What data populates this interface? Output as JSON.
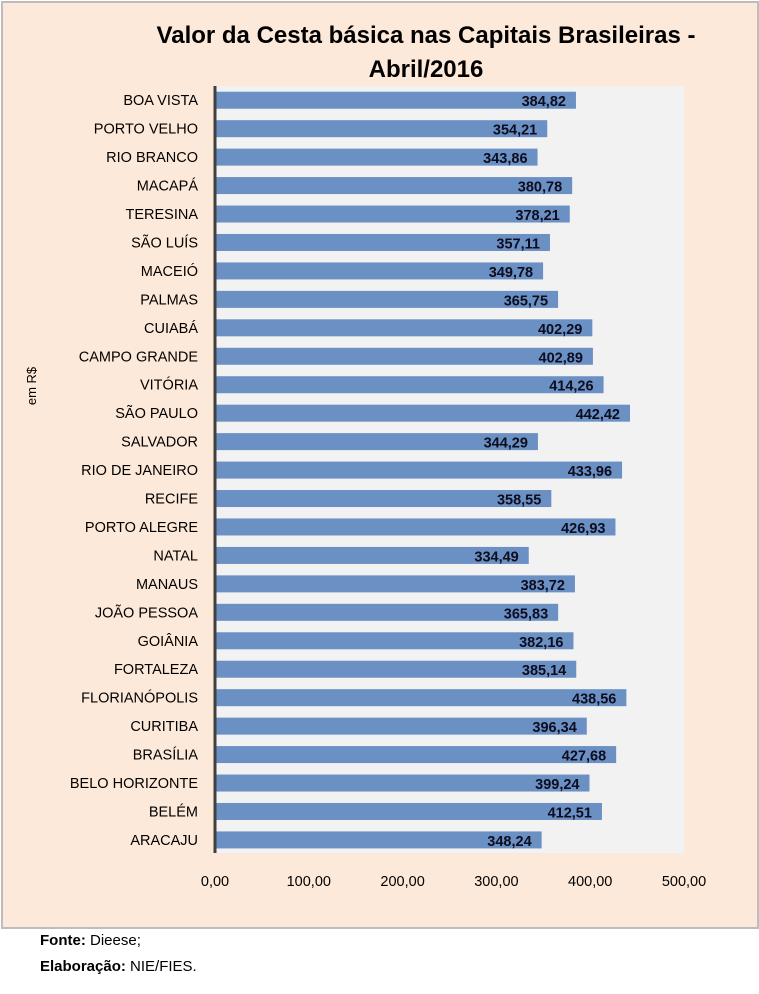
{
  "chart_data": {
    "type": "bar",
    "orientation": "horizontal",
    "title_lines": [
      "Valor da Cesta básica nas Capitais Brasileiras -",
      "Abril/2016"
    ],
    "ylabel": "em R$",
    "xlabel": "",
    "categories": [
      "BOA VISTA",
      "PORTO VELHO",
      "RIO BRANCO",
      "MACAPÁ",
      "TERESINA",
      "SÃO LUÍS",
      "MACEIÓ",
      "PALMAS",
      "CUIABÁ",
      "CAMPO GRANDE",
      "VITÓRIA",
      "SÃO PAULO",
      "SALVADOR",
      "RIO DE JANEIRO",
      "RECIFE",
      "PORTO ALEGRE",
      "NATAL",
      "MANAUS",
      "JOÃO PESSOA",
      "GOIÂNIA",
      "FORTALEZA",
      "FLORIANÓPOLIS",
      "CURITIBA",
      "BRASÍLIA",
      "BELO HORIZONTE",
      "BELÉM",
      "ARACAJU"
    ],
    "values": [
      384.82,
      354.21,
      343.86,
      380.78,
      378.21,
      357.11,
      349.78,
      365.75,
      402.29,
      402.89,
      414.26,
      442.42,
      344.29,
      433.96,
      358.55,
      426.93,
      334.49,
      383.72,
      365.83,
      382.16,
      385.14,
      438.56,
      396.34,
      427.68,
      399.24,
      412.51,
      348.24
    ],
    "value_labels": [
      "384,82",
      "354,21",
      "343,86",
      "380,78",
      "378,21",
      "357,11",
      "349,78",
      "365,75",
      "402,29",
      "402,89",
      "414,26",
      "442,42",
      "344,29",
      "433,96",
      "358,55",
      "426,93",
      "334,49",
      "383,72",
      "365,83",
      "382,16",
      "385,14",
      "438,56",
      "396,34",
      "427,68",
      "399,24",
      "412,51",
      "348,24"
    ],
    "xlim": [
      0,
      500
    ],
    "x_ticks": [
      0,
      100,
      200,
      300,
      400,
      500
    ],
    "x_tick_labels": [
      "0,00",
      "100,00",
      "200,00",
      "300,00",
      "400,00",
      "500,00"
    ],
    "grid": false,
    "legend": "none",
    "colors": {
      "bar": "#6a90c4",
      "plot_bg": "#f2f2f2",
      "chart_bg": "#fde9d9",
      "axis": "#404040"
    }
  },
  "footer": {
    "source_label": "Fonte:",
    "source_value": " Dieese;",
    "credit_label": "Elaboração:",
    "credit_value": " NIE/FIES."
  }
}
